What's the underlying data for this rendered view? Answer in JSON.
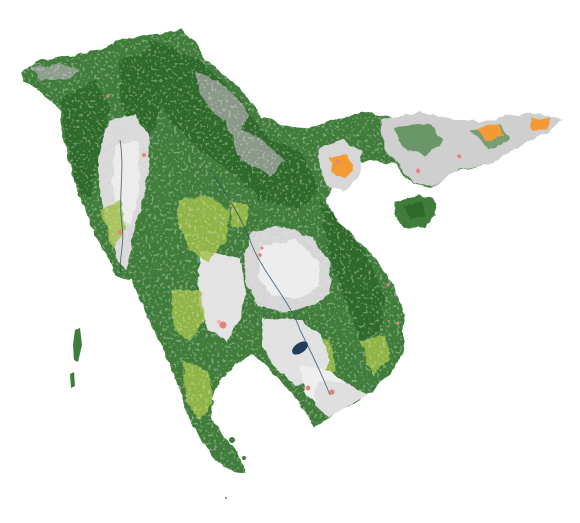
{
  "map": {
    "colors": {
      "background": "#ffffff",
      "forest": "#3f7d3a",
      "forest_dark": "#2f6a2c",
      "forest_light": "#5f9a4a",
      "mosaic": "#9fbf4a",
      "cropland": "#dcdcdc",
      "cropland_dark": "#bdbdbd",
      "urban": "#e8807a",
      "urban_bright": "#f39a36",
      "water": "#1f3f5a"
    }
  }
}
